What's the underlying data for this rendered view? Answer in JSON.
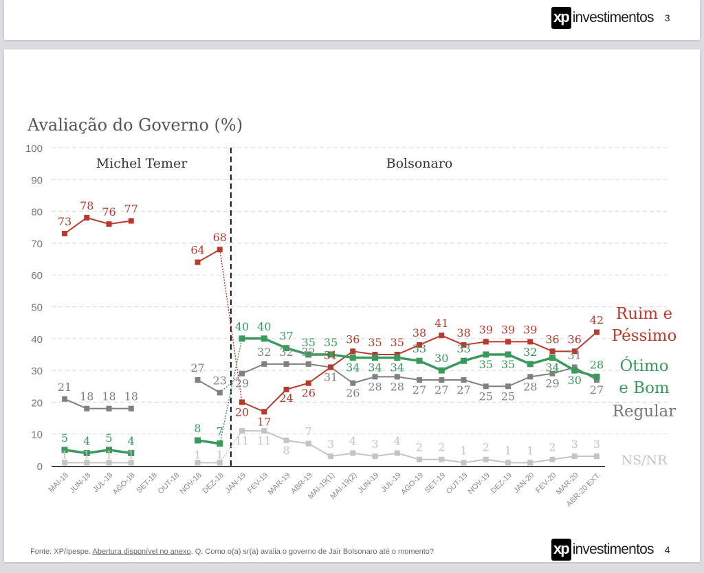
{
  "slides": {
    "top": {
      "logo_mark": "xp",
      "logo_text": "investimentos",
      "page_number": "3"
    },
    "main": {
      "logo_mark": "xp",
      "logo_text": "investimentos",
      "page_number": "4"
    }
  },
  "footer": {
    "source": "Fonte: XP/Ipespe.",
    "link": "Abertura disponível no anexo",
    "question": ". Q. Como o(a) sr(a) avalia o governo de Jair Bolsonaro até o momento?"
  },
  "chart_data": {
    "type": "line",
    "title": "Avaliação do Governo (%)",
    "xlabel": "",
    "ylabel": "",
    "ylim": [
      0,
      100
    ],
    "yticks": [
      0,
      10,
      20,
      30,
      40,
      50,
      60,
      70,
      80,
      90,
      100
    ],
    "grid": true,
    "legend_placement": "right",
    "periods": [
      {
        "label": "Michel Temer",
        "from": "MAI-18",
        "to": "DEZ-18"
      },
      {
        "label": "Bolsonaro",
        "from": "JAN-19",
        "to": "ABR-20 EXT."
      }
    ],
    "divider_after": "DEZ-18",
    "categories": [
      "MAI-18",
      "JUN-18",
      "JUL-18",
      "AGO-18",
      "SET-18",
      "OUT-18",
      "NOV-18",
      "DEZ-18",
      "JAN-19",
      "FEV-19",
      "MAR-19",
      "ABR-19",
      "MAI-19(1)",
      "MAI-19(2)",
      "JUN-19",
      "JUL-19",
      "AGO-19",
      "SET-19",
      "OUT-19",
      "NOV-19",
      "DEZ-19",
      "JAN-20",
      "FEV-20",
      "MAR-20",
      "ABR-20 EXT."
    ],
    "series": [
      {
        "name": "Ruim e Péssimo",
        "legend_lines": [
          "Ruim e",
          "Péssimo"
        ],
        "color": "#b83a2c",
        "line_width": 2,
        "values": [
          73,
          78,
          76,
          77,
          null,
          null,
          64,
          68,
          20,
          17,
          24,
          26,
          31,
          36,
          35,
          35,
          38,
          41,
          38,
          39,
          39,
          39,
          36,
          36,
          42
        ]
      },
      {
        "name": "Ótimo e Bom",
        "legend_lines": [
          "Ótimo",
          "e Bom"
        ],
        "color": "#3a9a5c",
        "line_width": 3.5,
        "values": [
          5,
          4,
          5,
          4,
          null,
          null,
          8,
          7,
          40,
          40,
          37,
          35,
          35,
          34,
          34,
          34,
          33,
          30,
          33,
          35,
          35,
          32,
          34,
          30,
          28
        ]
      },
      {
        "name": "Regular",
        "legend_lines": [
          "Regular"
        ],
        "color": "#808080",
        "line_width": 2,
        "values": [
          21,
          18,
          18,
          18,
          null,
          null,
          27,
          23,
          29,
          32,
          32,
          32,
          31,
          26,
          28,
          28,
          27,
          27,
          27,
          25,
          25,
          28,
          29,
          31,
          27
        ]
      },
      {
        "name": "NS/NR",
        "legend_lines": [
          "NS/NR"
        ],
        "color": "#c4c4c4",
        "line_width": 2,
        "values": [
          1,
          1,
          1,
          1,
          null,
          null,
          1,
          1,
          11,
          11,
          8,
          7,
          3,
          4,
          3,
          4,
          2,
          2,
          1,
          2,
          1,
          1,
          2,
          3,
          3
        ]
      }
    ]
  }
}
